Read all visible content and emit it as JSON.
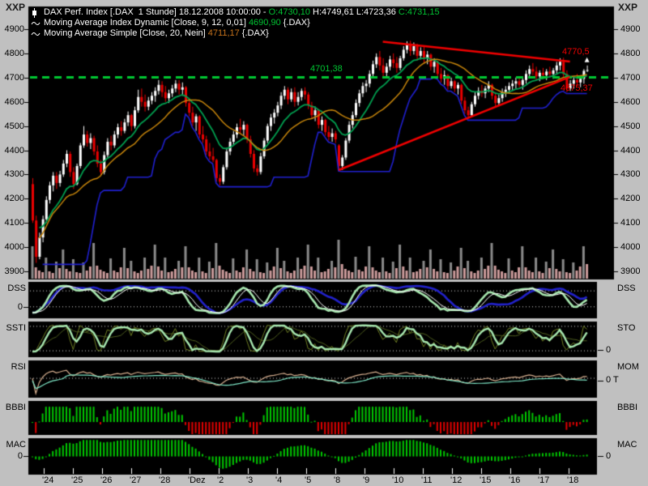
{
  "window": {
    "corner_label_left": "XXP",
    "corner_label_right": "XXP"
  },
  "legend": {
    "line1": {
      "icon": "candle-icon",
      "title": "DAX Perf. Index [.DAX  1 Stunde] 18.12.2008 10:00:00 - ",
      "open": "O:4730,10",
      "high_low": " H:4749,61 L:4723,36 ",
      "close": "C:4731,15"
    },
    "line2": {
      "icon": "wave-icon",
      "text": "Moving Average Index Dynamic [Close, 9, 12, 0,01] ",
      "value": "4690,90",
      "suffix": " {.DAX}"
    },
    "line3": {
      "icon": "wave-icon",
      "text": "Moving Average Simple [Close, 20, Nein] ",
      "value": "4711,17",
      "suffix": " {.DAX}"
    }
  },
  "axes": {
    "price_ticks": [
      4900,
      4800,
      4700,
      4600,
      4500,
      4400,
      4300,
      4200,
      4100,
      4000,
      3900
    ],
    "day_labels": [
      "'24",
      "'25",
      "'26",
      "'27",
      "'28",
      "'Dez",
      "'2",
      "'3",
      "'4",
      "'5",
      "'8",
      "'9",
      "'10",
      "'11",
      "'12",
      "'15",
      "'16",
      "'17",
      "'18"
    ]
  },
  "annotations": {
    "hline": {
      "value": 4701.38,
      "label": "4701,38"
    },
    "upper_trendline": {
      "label": "4770,5",
      "from_bar": 103,
      "from_price": 4848,
      "to_bar": 158,
      "to_price": 4766
    },
    "lower_trendline": {
      "label": "4675,37",
      "from_bar": 90,
      "from_price": 4318,
      "to_bar": 158,
      "to_price": 4703
    }
  },
  "panels": [
    {
      "id": "dss",
      "label_left": "DSS",
      "zero_left": "0",
      "label_right": "DSS"
    },
    {
      "id": "sto",
      "label_left": "SSTI",
      "label_right": "STO",
      "zero_right": "0"
    },
    {
      "id": "rsi",
      "label_left": "RSI",
      "label_right": "MOM",
      "zero_right": "0 T"
    },
    {
      "id": "bbbi",
      "label_left": "BBBI",
      "label_right": "BBBI"
    },
    {
      "id": "mac",
      "label_left": "MAC",
      "zero_left": "0",
      "label_right": "MAC",
      "zero_right": "0"
    }
  ],
  "colors": {
    "background": "#C0C0C0",
    "panel_black": "#000000",
    "candle_up": "#FFFFFF",
    "candle_down": "#E80000",
    "ma_dynamic": "#00A050",
    "ma_simple": "#C8860B",
    "band_blue": "#2020D0",
    "dashed_green": "#00C832",
    "trend_red": "#F00000",
    "volume_pink": "#CC9C9C",
    "volume_gray": "#8A8A8A",
    "osc_blue": "#2222CC",
    "osc_pale_green": "#A8E8B0",
    "osc_white": "#FFFFFF",
    "osc_olive": "#6F7F23",
    "rsi_tan": "#D8B090",
    "rsi_cyan": "#7FE8C8",
    "hist_green": "#00C800",
    "hist_red": "#E00000",
    "green_value": "#00C432",
    "orange_value": "#C8741C"
  },
  "chart_data": {
    "type": "candlestick",
    "title": "DAX Perf. Index [.DAX 1 Stunde]",
    "last_bar": {
      "datetime": "18.12.2008 10:00:00",
      "open": 4730.1,
      "high": 4749.61,
      "low": 4723.36,
      "close": 4731.15
    },
    "ylim": [
      3900,
      4900
    ],
    "x_day_labels": [
      "'24",
      "'25",
      "'26",
      "'27",
      "'28",
      "'Dez",
      "'2",
      "'3",
      "'4",
      "'5",
      "'8",
      "'9",
      "'10",
      "'11",
      "'12",
      "'15",
      "'16",
      "'17",
      "'18"
    ],
    "moving_averages": [
      {
        "name": "Moving Average Index Dynamic [Close, 9, 12, 0,01]",
        "last_value": 4690.9,
        "color": "#00A050"
      },
      {
        "name": "Moving Average Simple [Close, 20, Nein]",
        "last_value": 4711.17,
        "color": "#C8860B"
      },
      {
        "name": "trailing band",
        "color": "#2020D0"
      }
    ],
    "indicator_panels": [
      "DSS",
      "STO",
      "RSI/MOM",
      "BBBI",
      "MAC"
    ],
    "ohlc": [
      [
        4260,
        4285,
        4100,
        4110
      ],
      [
        4110,
        4130,
        3935,
        3960
      ],
      [
        3960,
        4060,
        3950,
        4040
      ],
      [
        4040,
        4130,
        4020,
        4115
      ],
      [
        4115,
        4210,
        4100,
        4195
      ],
      [
        4195,
        4270,
        4180,
        4255
      ],
      [
        4255,
        4310,
        4230,
        4295
      ],
      [
        4295,
        4310,
        4240,
        4265
      ],
      [
        4265,
        4315,
        4250,
        4300
      ],
      [
        4300,
        4360,
        4290,
        4345
      ],
      [
        4345,
        4400,
        4330,
        4385
      ],
      [
        4385,
        4395,
        4290,
        4310
      ],
      [
        4310,
        4330,
        4240,
        4260
      ],
      [
        4260,
        4345,
        4255,
        4335
      ],
      [
        4335,
        4430,
        4325,
        4420
      ],
      [
        4420,
        4500,
        4410,
        4465
      ],
      [
        4465,
        4480,
        4415,
        4430
      ],
      [
        4430,
        4470,
        4405,
        4450
      ],
      [
        4450,
        4460,
        4380,
        4395
      ],
      [
        4395,
        4420,
        4330,
        4345
      ],
      [
        4345,
        4360,
        4295,
        4310
      ],
      [
        4310,
        4395,
        4300,
        4380
      ],
      [
        4380,
        4450,
        4370,
        4435
      ],
      [
        4435,
        4460,
        4400,
        4420
      ],
      [
        4420,
        4480,
        4410,
        4465
      ],
      [
        4465,
        4510,
        4450,
        4495
      ],
      [
        4495,
        4520,
        4460,
        4480
      ],
      [
        4480,
        4530,
        4470,
        4515
      ],
      [
        4515,
        4560,
        4500,
        4545
      ],
      [
        4545,
        4550,
        4480,
        4500
      ],
      [
        4500,
        4580,
        4490,
        4565
      ],
      [
        4565,
        4650,
        4555,
        4620
      ],
      [
        4620,
        4655,
        4580,
        4600
      ],
      [
        4600,
        4630,
        4560,
        4580
      ],
      [
        4580,
        4620,
        4565,
        4605
      ],
      [
        4605,
        4640,
        4590,
        4625
      ],
      [
        4625,
        4660,
        4600,
        4645
      ],
      [
        4645,
        4690,
        4630,
        4670
      ],
      [
        4670,
        4685,
        4620,
        4640
      ],
      [
        4640,
        4665,
        4600,
        4615
      ],
      [
        4615,
        4650,
        4595,
        4635
      ],
      [
        4635,
        4670,
        4620,
        4655
      ],
      [
        4655,
        4690,
        4640,
        4675
      ],
      [
        4675,
        4690,
        4630,
        4650
      ],
      [
        4650,
        4680,
        4625,
        4660
      ],
      [
        4660,
        4665,
        4580,
        4595
      ],
      [
        4595,
        4610,
        4540,
        4555
      ],
      [
        4555,
        4580,
        4500,
        4515
      ],
      [
        4515,
        4550,
        4480,
        4540
      ],
      [
        4540,
        4545,
        4450,
        4465
      ],
      [
        4465,
        4500,
        4430,
        4445
      ],
      [
        4445,
        4460,
        4380,
        4395
      ],
      [
        4395,
        4430,
        4360,
        4375
      ],
      [
        4375,
        4410,
        4350,
        4360
      ],
      [
        4360,
        4365,
        4270,
        4285
      ],
      [
        4285,
        4300,
        4255,
        4270
      ],
      [
        4270,
        4340,
        4260,
        4330
      ],
      [
        4330,
        4410,
        4320,
        4395
      ],
      [
        4395,
        4450,
        4380,
        4435
      ],
      [
        4435,
        4480,
        4420,
        4465
      ],
      [
        4465,
        4510,
        4450,
        4495
      ],
      [
        4495,
        4530,
        4470,
        4485
      ],
      [
        4485,
        4520,
        4460,
        4505
      ],
      [
        4505,
        4510,
        4430,
        4445
      ],
      [
        4445,
        4460,
        4370,
        4385
      ],
      [
        4385,
        4400,
        4310,
        4325
      ],
      [
        4325,
        4340,
        4295,
        4310
      ],
      [
        4310,
        4390,
        4300,
        4375
      ],
      [
        4375,
        4450,
        4365,
        4440
      ],
      [
        4440,
        4510,
        4430,
        4500
      ],
      [
        4500,
        4550,
        4480,
        4535
      ],
      [
        4535,
        4570,
        4510,
        4555
      ],
      [
        4555,
        4600,
        4540,
        4585
      ],
      [
        4585,
        4640,
        4570,
        4625
      ],
      [
        4625,
        4665,
        4610,
        4650
      ],
      [
        4650,
        4660,
        4590,
        4610
      ],
      [
        4610,
        4655,
        4600,
        4640
      ],
      [
        4640,
        4660,
        4580,
        4600
      ],
      [
        4600,
        4640,
        4585,
        4620
      ],
      [
        4620,
        4655,
        4605,
        4645
      ],
      [
        4645,
        4660,
        4610,
        4630
      ],
      [
        4630,
        4640,
        4570,
        4585
      ],
      [
        4585,
        4600,
        4530,
        4545
      ],
      [
        4545,
        4580,
        4520,
        4565
      ],
      [
        4565,
        4570,
        4490,
        4505
      ],
      [
        4505,
        4540,
        4480,
        4525
      ],
      [
        4525,
        4530,
        4460,
        4475
      ],
      [
        4475,
        4500,
        4440,
        4455
      ],
      [
        4455,
        4490,
        4435,
        4470
      ],
      [
        4470,
        4480,
        4430,
        4445
      ],
      [
        4420,
        4425,
        4320,
        4335
      ],
      [
        4335,
        4380,
        4318,
        4370
      ],
      [
        4370,
        4450,
        4360,
        4440
      ],
      [
        4440,
        4520,
        4430,
        4505
      ],
      [
        4505,
        4560,
        4490,
        4545
      ],
      [
        4545,
        4610,
        4535,
        4595
      ],
      [
        4595,
        4650,
        4580,
        4635
      ],
      [
        4635,
        4680,
        4620,
        4665
      ],
      [
        4665,
        4690,
        4640,
        4675
      ],
      [
        4675,
        4730,
        4660,
        4715
      ],
      [
        4715,
        4770,
        4700,
        4755
      ],
      [
        4755,
        4800,
        4740,
        4785
      ],
      [
        4785,
        4810,
        4730,
        4750
      ],
      [
        4750,
        4780,
        4700,
        4720
      ],
      [
        4720,
        4760,
        4705,
        4745
      ],
      [
        4745,
        4790,
        4730,
        4775
      ],
      [
        4775,
        4800,
        4740,
        4760
      ],
      [
        4760,
        4785,
        4720,
        4740
      ],
      [
        4740,
        4790,
        4730,
        4780
      ],
      [
        4780,
        4830,
        4770,
        4815
      ],
      [
        4815,
        4850,
        4800,
        4840
      ],
      [
        4840,
        4852,
        4790,
        4810
      ],
      [
        4810,
        4845,
        4795,
        4830
      ],
      [
        4830,
        4840,
        4770,
        4790
      ],
      [
        4790,
        4825,
        4775,
        4810
      ],
      [
        4810,
        4830,
        4760,
        4780
      ],
      [
        4780,
        4810,
        4755,
        4795
      ],
      [
        4795,
        4800,
        4730,
        4745
      ],
      [
        4745,
        4780,
        4720,
        4765
      ],
      [
        4765,
        4770,
        4700,
        4715
      ],
      [
        4715,
        4740,
        4680,
        4695
      ],
      [
        4695,
        4730,
        4670,
        4710
      ],
      [
        4710,
        4715,
        4650,
        4665
      ],
      [
        4665,
        4700,
        4655,
        4685
      ],
      [
        4685,
        4690,
        4640,
        4655
      ],
      [
        4655,
        4680,
        4630,
        4670
      ],
      [
        4670,
        4675,
        4590,
        4605
      ],
      [
        4605,
        4620,
        4550,
        4565
      ],
      [
        4565,
        4580,
        4530,
        4545
      ],
      [
        4545,
        4600,
        4540,
        4590
      ],
      [
        4590,
        4640,
        4580,
        4625
      ],
      [
        4625,
        4660,
        4610,
        4645
      ],
      [
        4645,
        4670,
        4620,
        4635
      ],
      [
        4635,
        4665,
        4615,
        4655
      ],
      [
        4655,
        4685,
        4640,
        4670
      ],
      [
        4670,
        4675,
        4610,
        4625
      ],
      [
        4625,
        4640,
        4580,
        4595
      ],
      [
        4595,
        4630,
        4585,
        4615
      ],
      [
        4615,
        4655,
        4600,
        4640
      ],
      [
        4640,
        4665,
        4620,
        4650
      ],
      [
        4650,
        4680,
        4635,
        4665
      ],
      [
        4665,
        4690,
        4645,
        4675
      ],
      [
        4675,
        4700,
        4655,
        4685
      ],
      [
        4685,
        4705,
        4660,
        4670
      ],
      [
        4670,
        4700,
        4650,
        4690
      ],
      [
        4690,
        4730,
        4675,
        4715
      ],
      [
        4715,
        4750,
        4700,
        4735
      ],
      [
        4735,
        4760,
        4710,
        4725
      ],
      [
        4725,
        4745,
        4690,
        4705
      ],
      [
        4705,
        4730,
        4685,
        4720
      ],
      [
        4720,
        4740,
        4695,
        4710
      ],
      [
        4710,
        4735,
        4690,
        4725
      ],
      [
        4725,
        4745,
        4700,
        4715
      ],
      [
        4715,
        4740,
        4695,
        4730
      ],
      [
        4730,
        4765,
        4715,
        4750
      ],
      [
        4750,
        4780,
        4730,
        4765
      ],
      [
        4765,
        4782,
        4700,
        4715
      ],
      [
        4715,
        4730,
        4640,
        4655
      ],
      [
        4655,
        4690,
        4645,
        4675
      ],
      [
        4675,
        4700,
        4655,
        4690
      ],
      [
        4690,
        4715,
        4665,
        4680
      ],
      [
        4680,
        4705,
        4660,
        4695
      ],
      [
        4695,
        4735,
        4675,
        4728
      ],
      [
        4730,
        4750,
        4723,
        4731
      ]
    ],
    "volumes": [
      40,
      14,
      10,
      8,
      26,
      9,
      7,
      21,
      13,
      36,
      12,
      9,
      24,
      8,
      7,
      20,
      10,
      15,
      44,
      16,
      11,
      9,
      7,
      25,
      10,
      8,
      14,
      38,
      13,
      22,
      9,
      7,
      10,
      26,
      12,
      16,
      42,
      15,
      10,
      26,
      8,
      9,
      12,
      22,
      14,
      40,
      14,
      10,
      8,
      26,
      9,
      7,
      21,
      13,
      44,
      16,
      11,
      9,
      7,
      25,
      10,
      8,
      14,
      36,
      12,
      9,
      24,
      8,
      7,
      20,
      10,
      15,
      38,
      13,
      22,
      9,
      7,
      10,
      26,
      12,
      16,
      42,
      15,
      10,
      26,
      8,
      9,
      12,
      22,
      14,
      48,
      18,
      12,
      10,
      8,
      27,
      11,
      9,
      15,
      40,
      14,
      10,
      8,
      26,
      9,
      7,
      21,
      13,
      42,
      15,
      10,
      26,
      8,
      9,
      12,
      22,
      14,
      36,
      12,
      9,
      24,
      8,
      7,
      20,
      10,
      15,
      38,
      13,
      22,
      9,
      7,
      10,
      26,
      12,
      16,
      44,
      16,
      11,
      9,
      7,
      25,
      10,
      8,
      14,
      40,
      14,
      10,
      8,
      26,
      9,
      7,
      21,
      13,
      36,
      12,
      9,
      24,
      8,
      7,
      20,
      10,
      15,
      40,
      18
    ]
  }
}
